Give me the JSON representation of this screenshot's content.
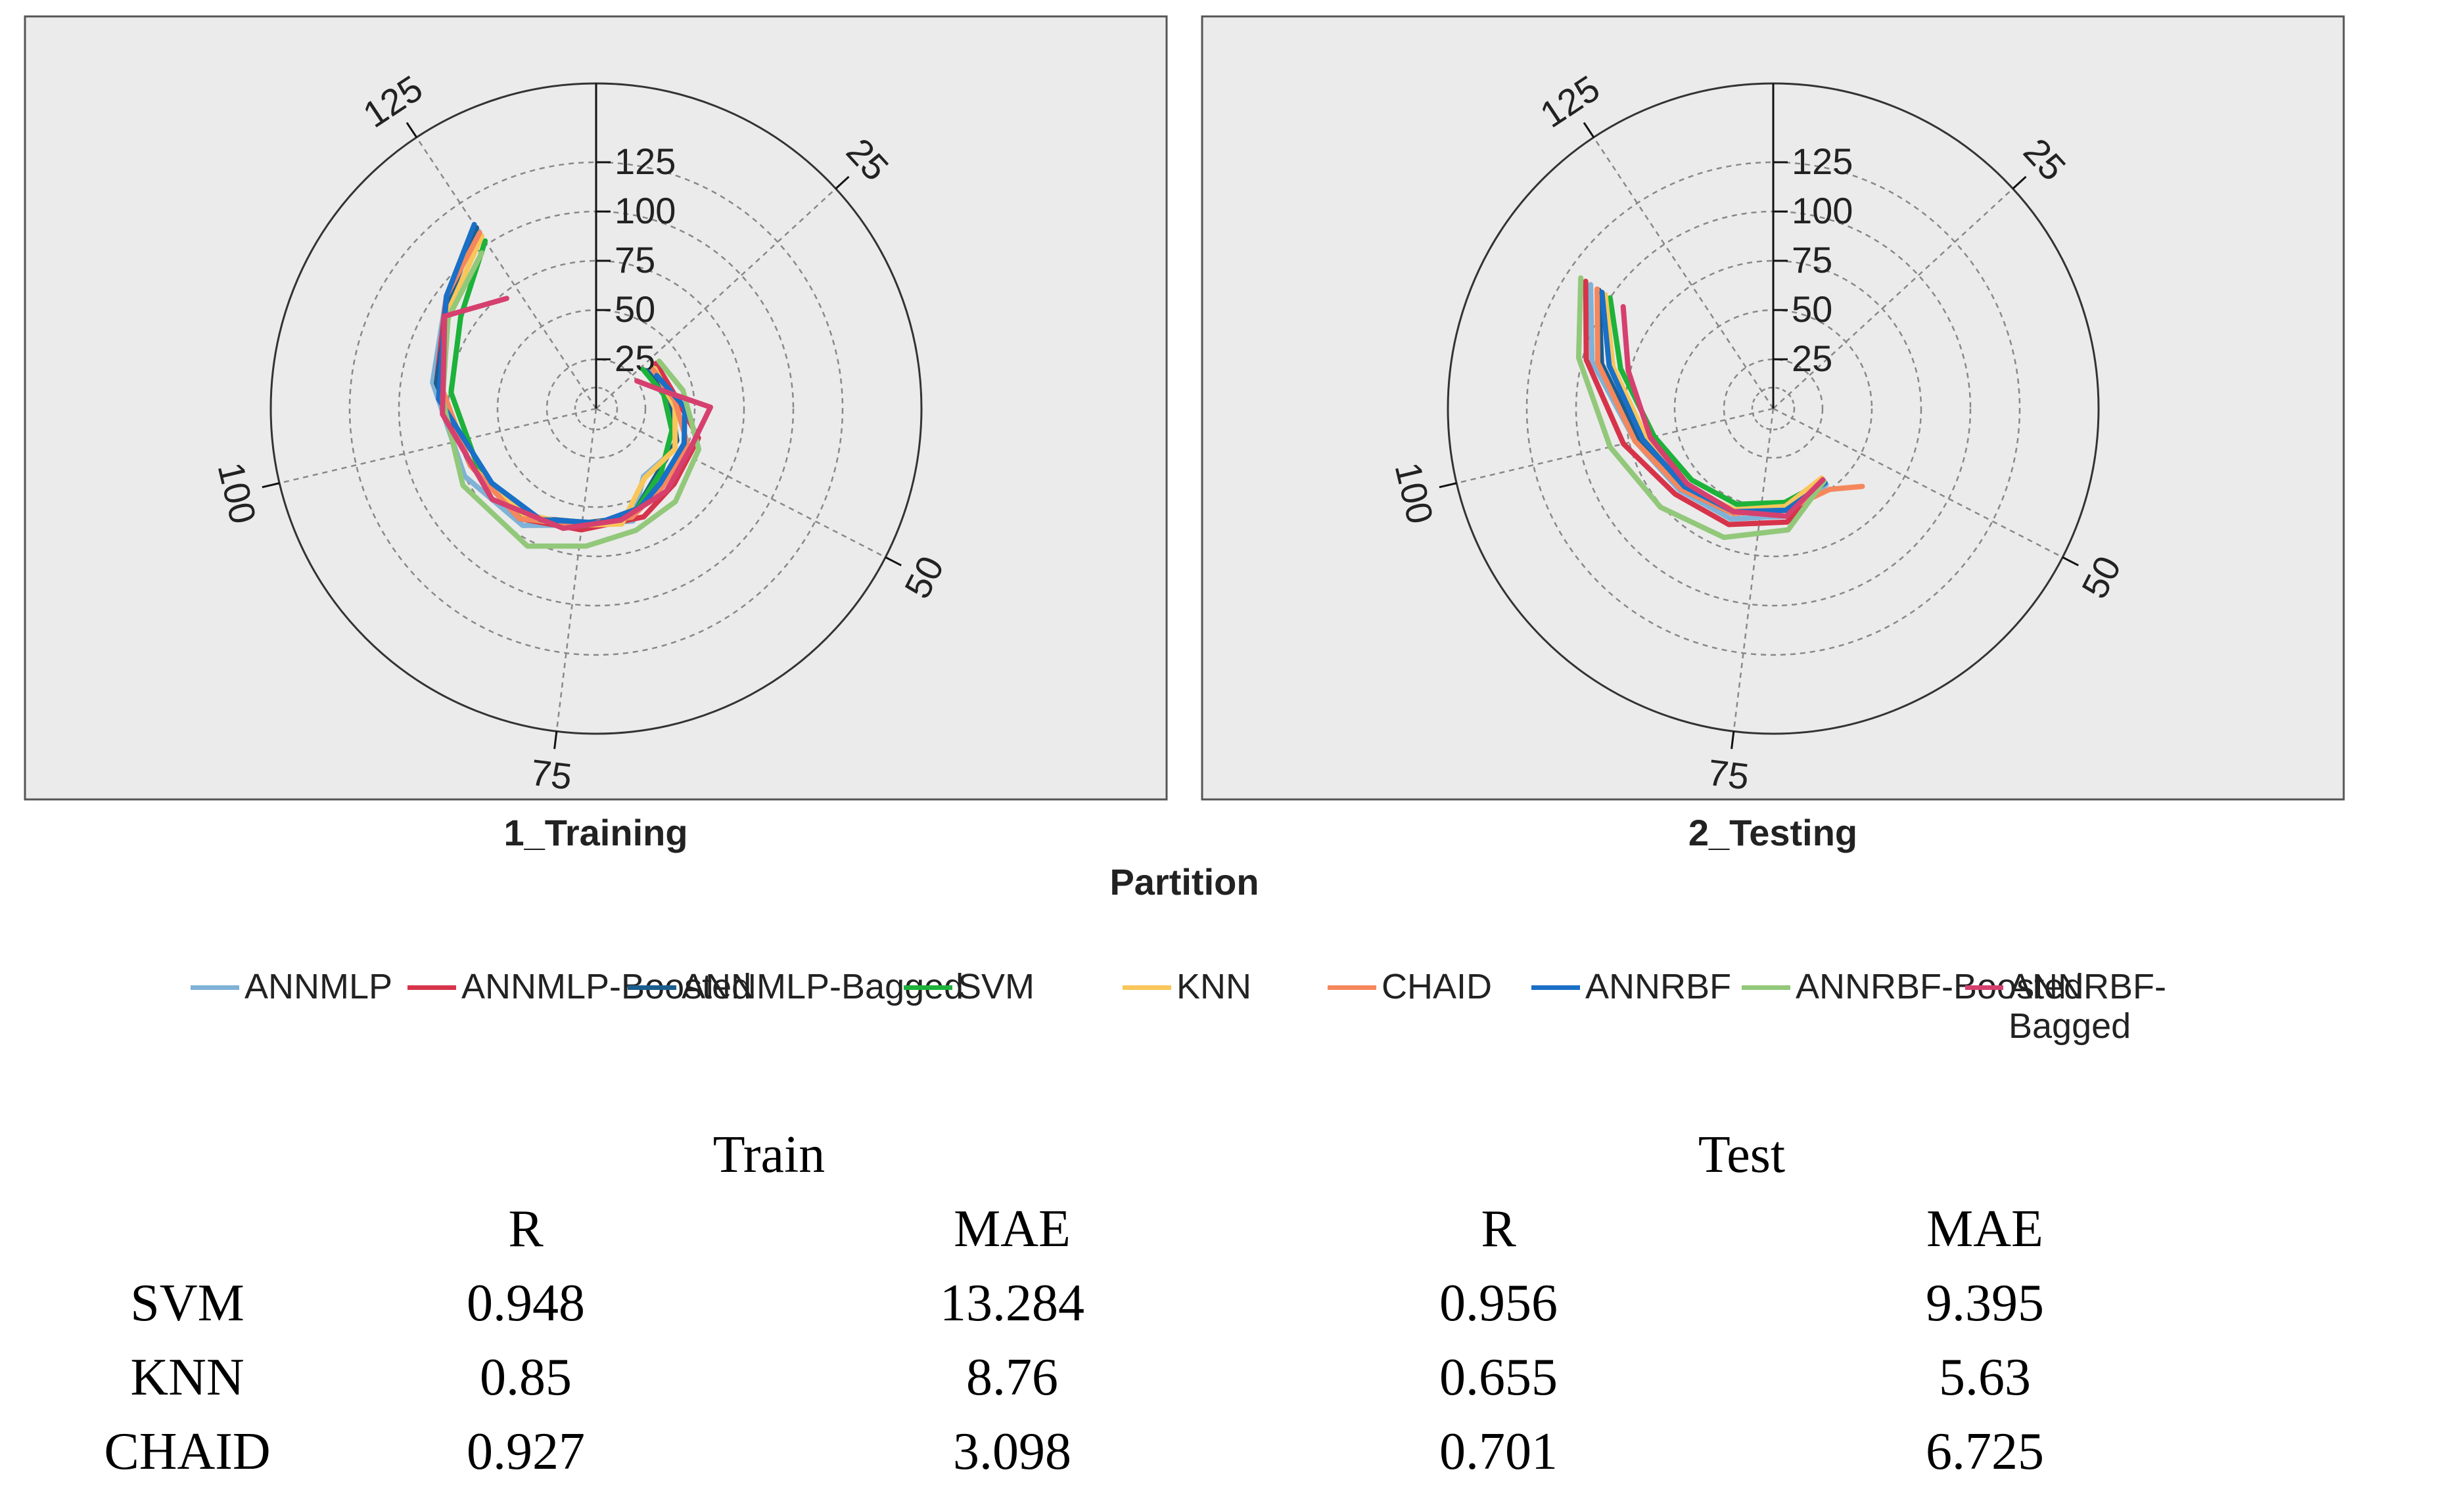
{
  "chart_data": {
    "type": "radar",
    "xlabel": "Partition",
    "series_names": [
      "ANNMLP",
      "ANNMLP-Boosted",
      "ANNMLP-Bagged",
      "SVM",
      "KNN",
      "CHAID",
      "ANNRBF",
      "ANNRBF-Boosted",
      "ANNRBF-Bagged"
    ],
    "series_colors": [
      "#7FB2D6",
      "#D6344A",
      "#1A5E8F",
      "#1DB23A",
      "#F9C65A",
      "#F5875C",
      "#1A6FC6",
      "#92C87A",
      "#D6406E"
    ],
    "radial_ticks": [
      "25",
      "50",
      "75",
      "100",
      "125"
    ],
    "radial_values": [
      25,
      50,
      75,
      100,
      125
    ],
    "angular_ticks": [
      "25",
      "50",
      "75",
      "100",
      "125"
    ],
    "angular_values": [
      25,
      50,
      75,
      100,
      125
    ],
    "angle_range": [
      8,
      137
    ],
    "radial_range": [
      0,
      165
    ],
    "panels": [
      {
        "title": "1_Training",
        "series": [
          {
            "name": "ANNMLP",
            "values": [
              [
                28,
                33
              ],
              [
                40,
                40
              ],
              [
                50,
                45
              ],
              [
                60,
                42
              ],
              [
                66,
                60
              ],
              [
                76,
                60
              ],
              [
                84,
                70
              ],
              [
                95,
                75
              ],
              [
                108,
                84
              ],
              [
                118,
                95
              ],
              [
                125,
                108
              ]
            ]
          },
          {
            "name": "ANNMLP-Boosted",
            "values": [
              [
                27,
                38
              ],
              [
                36,
                40
              ],
              [
                46,
                54
              ],
              [
                56,
                55
              ],
              [
                64,
                60
              ],
              [
                75,
                62
              ],
              [
                85,
                68
              ],
              [
                96,
                70
              ],
              [
                108,
                82
              ],
              [
                118,
                95
              ],
              [
                125,
                110
              ]
            ]
          },
          {
            "name": "ANNMLP-Bagged",
            "values": [
              [
                27,
                32
              ],
              [
                38,
                38
              ],
              [
                48,
                44
              ],
              [
                58,
                46
              ],
              [
                66,
                58
              ],
              [
                74,
                58
              ],
              [
                85,
                67
              ],
              [
                96,
                70
              ],
              [
                108,
                82
              ],
              [
                118,
                93
              ],
              [
                125,
                110
              ]
            ]
          },
          {
            "name": "SVM",
            "values": [
              [
                26,
                31
              ],
              [
                36,
                35
              ],
              [
                46,
                40
              ],
              [
                56,
                46
              ],
              [
                66,
                58
              ],
              [
                75,
                60
              ],
              [
                85,
                66
              ],
              [
                95,
                67
              ],
              [
                107,
                74
              ],
              [
                117,
                83
              ],
              [
                125,
                102
              ]
            ]
          },
          {
            "name": "KNN",
            "values": [
              [
                28,
                36
              ],
              [
                40,
                40
              ],
              [
                50,
                45
              ],
              [
                60,
                43
              ],
              [
                68,
                60
              ],
              [
                76,
                60
              ],
              [
                85,
                65
              ],
              [
                96,
                70
              ],
              [
                108,
                80
              ],
              [
                117,
                90
              ],
              [
                125,
                105
              ]
            ]
          },
          {
            "name": "CHAID",
            "values": [
              [
                28,
                35
              ],
              [
                38,
                40
              ],
              [
                48,
                50
              ],
              [
                58,
                52
              ],
              [
                66,
                58
              ],
              [
                76,
                60
              ],
              [
                85,
                68
              ],
              [
                96,
                70
              ],
              [
                108,
                80
              ],
              [
                118,
                95
              ],
              [
                125,
                107
              ]
            ]
          },
          {
            "name": "ANNRBF",
            "values": [
              [
                30,
                35
              ],
              [
                40,
                45
              ],
              [
                48,
                48
              ],
              [
                58,
                50
              ],
              [
                64,
                55
              ],
              [
                72,
                58
              ],
              [
                82,
                63
              ],
              [
                92,
                65
              ],
              [
                106,
                80
              ],
              [
                118,
                95
              ],
              [
                125,
                112
              ]
            ]
          },
          {
            "name": "ANNRBF-Boosted",
            "values": [
              [
                27,
                40
              ],
              [
                36,
                45
              ],
              [
                48,
                56
              ],
              [
                58,
                62
              ],
              [
                66,
                65
              ],
              [
                74,
                70
              ],
              [
                82,
                78
              ],
              [
                94,
                78
              ],
              [
                106,
                78
              ],
              [
                116,
                88
              ],
              [
                124,
                98
              ]
            ]
          },
          {
            "name": "ANNRBF-Bagged",
            "values": [
              [
                28,
                25
              ],
              [
                34,
                33
              ],
              [
                40,
                58
              ],
              [
                48,
                52
              ],
              [
                58,
                55
              ],
              [
                68,
                58
              ],
              [
                78,
                63
              ],
              [
                90,
                70
              ],
              [
                104,
                78
              ],
              [
                116,
                90
              ],
              [
                123,
                72
              ]
            ]
          }
        ]
      },
      {
        "title": "2_Testing",
        "series": [
          {
            "name": "ANNMLP",
            "values": [
              [
                60,
                47
              ],
              [
                70,
                55
              ],
              [
                80,
                60
              ],
              [
                90,
                63
              ],
              [
                100,
                72
              ],
              [
                110,
                95
              ],
              [
                117,
                112
              ]
            ]
          },
          {
            "name": "ANNMLP-Boosted",
            "values": [
              [
                60,
                45
              ],
              [
                70,
                58
              ],
              [
                80,
                63
              ],
              [
                90,
                66
              ],
              [
                100,
                78
              ],
              [
                110,
                98
              ],
              [
                117,
                115
              ]
            ]
          },
          {
            "name": "ANNMLP-Bagged",
            "values": [
              [
                60,
                45
              ],
              [
                70,
                52
              ],
              [
                80,
                57
              ],
              [
                90,
                62
              ],
              [
                100,
                70
              ],
              [
                110,
                90
              ],
              [
                117,
                107
              ]
            ]
          },
          {
            "name": "SVM",
            "values": [
              [
                60,
                45
              ],
              [
                70,
                48
              ],
              [
                80,
                52
              ],
              [
                90,
                55
              ],
              [
                100,
                62
              ],
              [
                110,
                80
              ],
              [
                117,
                100
              ]
            ]
          },
          {
            "name": "KNN",
            "values": [
              [
                60,
                43
              ],
              [
                70,
                50
              ],
              [
                80,
                55
              ],
              [
                90,
                60
              ],
              [
                100,
                66
              ],
              [
                110,
                84
              ],
              [
                117,
                103
              ]
            ]
          },
          {
            "name": "CHAID",
            "values": [
              [
                55,
                60
              ],
              [
                60,
                50
              ],
              [
                70,
                52
              ],
              [
                80,
                57
              ],
              [
                90,
                62
              ],
              [
                100,
                72
              ],
              [
                110,
                92
              ],
              [
                117,
                108
              ]
            ]
          },
          {
            "name": "ANNRBF",
            "values": [
              [
                60,
                46
              ],
              [
                70,
                52
              ],
              [
                80,
                56
              ],
              [
                90,
                60
              ],
              [
                100,
                68
              ],
              [
                110,
                86
              ],
              [
                117,
                105
              ]
            ]
          },
          {
            "name": "ANNRBF-Boosted",
            "values": [
              [
                60,
                45
              ],
              [
                70,
                62
              ],
              [
                80,
                70
              ],
              [
                90,
                76
              ],
              [
                100,
                85
              ],
              [
                110,
                102
              ],
              [
                117,
                118
              ]
            ]
          },
          {
            "name": "ANNRBF-Bagged",
            "values": [
              [
                60,
                44
              ],
              [
                70,
                55
              ],
              [
                80,
                56
              ],
              [
                90,
                58
              ],
              [
                100,
                64
              ],
              [
                110,
                76
              ],
              [
                117,
                92
              ]
            ]
          }
        ]
      }
    ]
  },
  "table": {
    "group_headers": [
      "Train",
      "Test"
    ],
    "columns": [
      "R",
      "MAE",
      "R",
      "MAE"
    ],
    "rows": [
      {
        "label": "SVM",
        "values": [
          "0.948",
          "13.284",
          "0.956",
          "9.395"
        ]
      },
      {
        "label": "KNN",
        "values": [
          "0.85",
          "8.76",
          "0.655",
          "5.63"
        ]
      },
      {
        "label": "CHAID",
        "values": [
          "0.927",
          "3.098",
          "0.701",
          "6.725"
        ]
      }
    ]
  }
}
